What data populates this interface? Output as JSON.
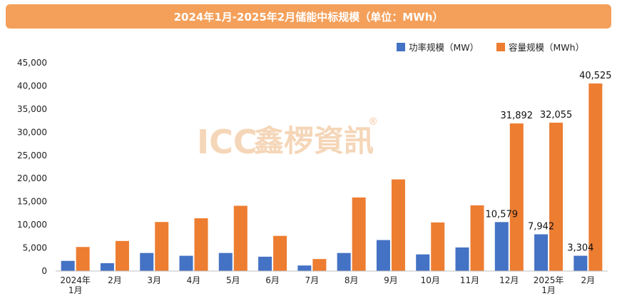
{
  "chart_data": {
    "type": "bar",
    "title": "2024年1月-2025年2月储能中标规模（单位：MWh）",
    "categories": [
      [
        "2024年",
        "1月"
      ],
      [
        "2月"
      ],
      [
        "3月"
      ],
      [
        "4月"
      ],
      [
        "5月"
      ],
      [
        "6月"
      ],
      [
        "7月"
      ],
      [
        "8月"
      ],
      [
        "9月"
      ],
      [
        "10月"
      ],
      [
        "11月"
      ],
      [
        "12月"
      ],
      [
        "2025年",
        "1月"
      ],
      [
        "2月"
      ]
    ],
    "series": [
      {
        "name": "功率规模（MW）",
        "color": "#4472c4",
        "values": [
          2200,
          1700,
          3900,
          3300,
          3900,
          3100,
          1200,
          3900,
          6700,
          3600,
          5100,
          10579,
          7942,
          3304
        ],
        "labels": [
          "",
          "",
          "",
          "",
          "",
          "",
          "",
          "",
          "",
          "",
          "",
          "10,579",
          "7,942",
          "3,304"
        ]
      },
      {
        "name": "容量规模（MWh）",
        "color": "#ed7d31",
        "values": [
          5200,
          6500,
          10600,
          11400,
          14100,
          7600,
          2600,
          15900,
          19800,
          10500,
          14200,
          31892,
          32055,
          40525
        ],
        "labels": [
          "",
          "",
          "",
          "",
          "",
          "",
          "",
          "",
          "",
          "",
          "",
          "31,892",
          "32,055",
          "40,525"
        ]
      }
    ],
    "ylim": [
      0,
      45000
    ],
    "yticks": [
      0,
      5000,
      10000,
      15000,
      20000,
      25000,
      30000,
      35000,
      40000,
      45000
    ],
    "ytick_labels": [
      "0",
      "5,000",
      "10,000",
      "15,000",
      "20,000",
      "25,000",
      "30,000",
      "35,000",
      "40,000",
      "45,000"
    ],
    "xlabel": "",
    "ylabel": "",
    "grid": false,
    "legend_position": "top-right"
  },
  "watermark": {
    "logo_text": "ICC",
    "brand_text": "鑫椤資訊",
    "registered_mark": "®",
    "color": "#f5d6b8"
  }
}
